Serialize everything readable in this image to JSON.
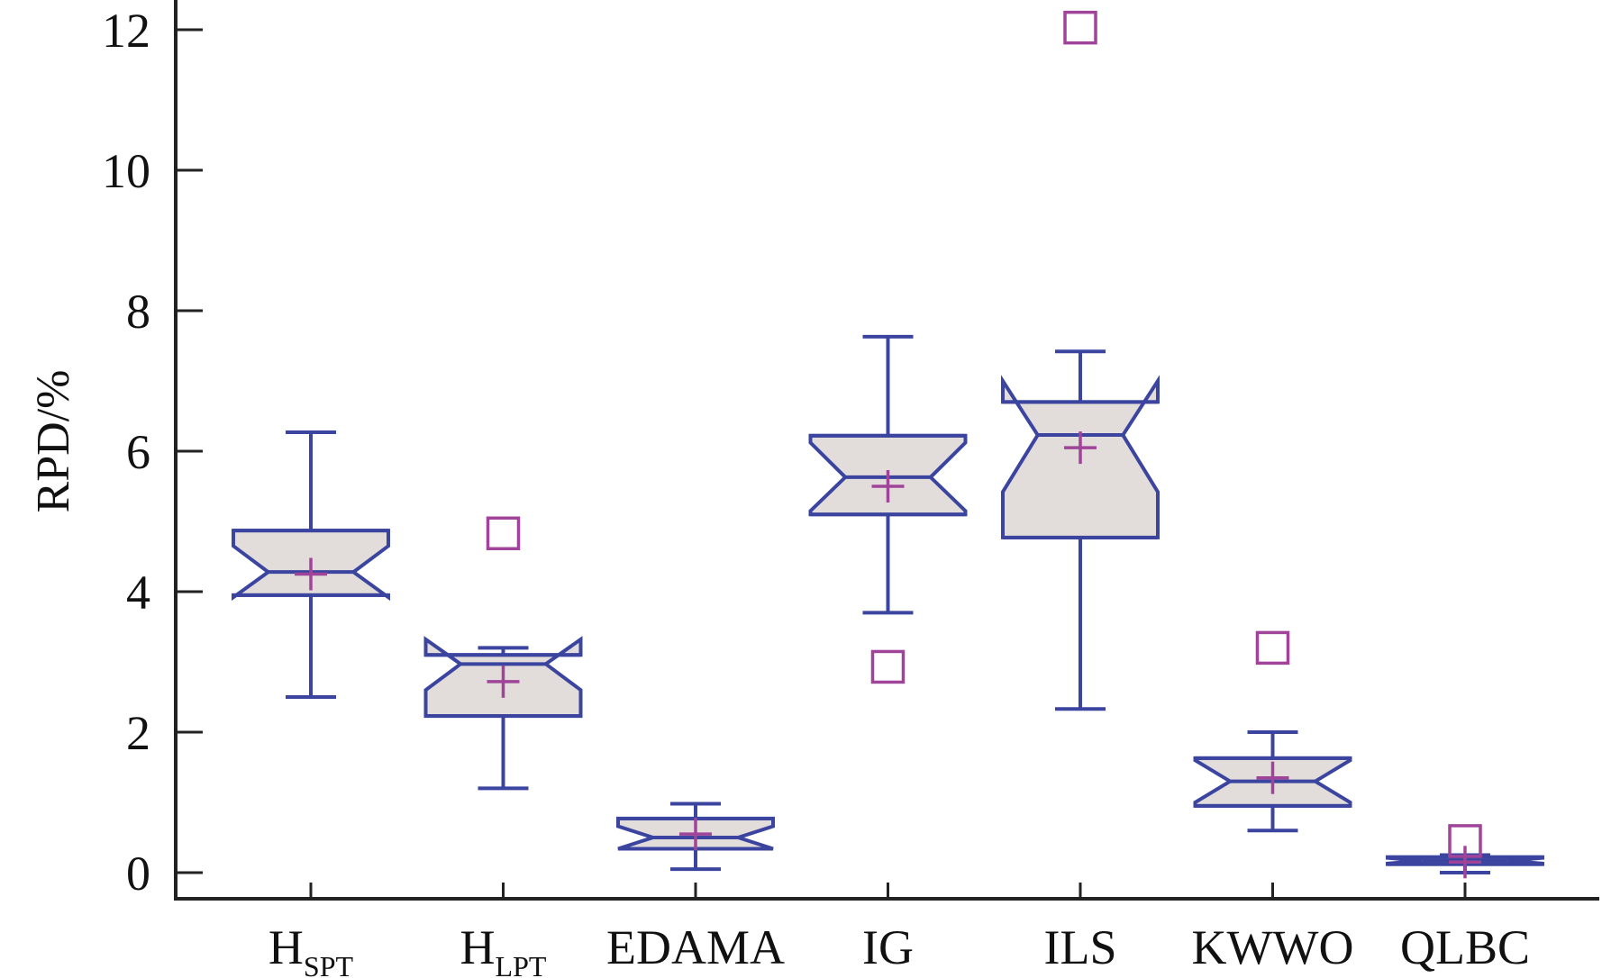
{
  "chart_data": {
    "type": "box",
    "title": "",
    "xlabel": "",
    "ylabel": "RPD/%",
    "ylim": [
      -0.75,
      12.6
    ],
    "yticks": [
      0,
      2,
      4,
      6,
      8,
      10,
      12
    ],
    "grid": false,
    "colors": {
      "box_stroke": "#3b45a0",
      "box_fill": "#e2dcda",
      "mean_and_outlier": "#a0449a",
      "axis": "#222222"
    },
    "categories": [
      {
        "label": "H",
        "sub": "SPT",
        "whisker_low": 2.5,
        "q1": 3.95,
        "median": 4.28,
        "q3": 4.87,
        "whisker_high": 6.27,
        "notch_low": 3.92,
        "notch_high": 4.65,
        "mean": 4.25,
        "outliers": []
      },
      {
        "label": "H",
        "sub": "LPT",
        "whisker_low": 1.2,
        "q1": 2.23,
        "median": 2.97,
        "q3": 3.1,
        "whisker_high": 3.2,
        "notch_low": 2.6,
        "notch_high": 3.32,
        "mean": 2.72,
        "outliers": [
          4.83
        ]
      },
      {
        "label": "EDAMA",
        "sub": "",
        "whisker_low": 0.05,
        "q1": 0.34,
        "median": 0.5,
        "q3": 0.77,
        "whisker_high": 0.98,
        "notch_low": 0.34,
        "notch_high": 0.66,
        "mean": 0.55,
        "outliers": []
      },
      {
        "label": "IG",
        "sub": "",
        "whisker_low": 3.7,
        "q1": 5.1,
        "median": 5.63,
        "q3": 6.22,
        "whisker_high": 7.63,
        "notch_low": 5.15,
        "notch_high": 6.12,
        "mean": 5.5,
        "outliers": [
          2.93
        ]
      },
      {
        "label": "ILS",
        "sub": "",
        "whisker_low": 2.33,
        "q1": 4.77,
        "median": 6.23,
        "q3": 6.7,
        "whisker_high": 7.42,
        "notch_low": 5.42,
        "notch_high": 7.0,
        "mean": 6.05,
        "outliers": [
          12.03
        ]
      },
      {
        "label": "KWWO",
        "sub": "",
        "whisker_low": 0.6,
        "q1": 0.95,
        "median": 1.3,
        "q3": 1.63,
        "whisker_high": 2.0,
        "notch_low": 1.0,
        "notch_high": 1.6,
        "mean": 1.35,
        "outliers": [
          3.2
        ]
      },
      {
        "label": "QLBC",
        "sub": "",
        "whisker_low": 0.0,
        "q1": 0.12,
        "median": 0.17,
        "q3": 0.22,
        "whisker_high": 0.25,
        "notch_low": 0.13,
        "notch_high": 0.21,
        "mean": 0.15,
        "outliers": [
          0.45
        ]
      }
    ]
  }
}
